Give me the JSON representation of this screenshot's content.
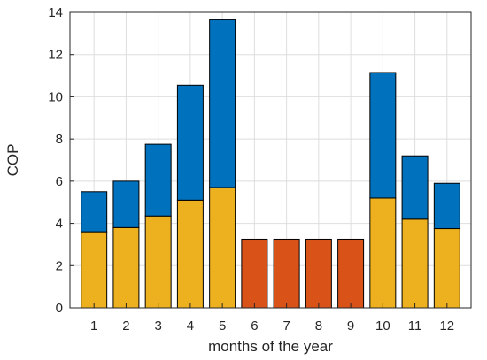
{
  "chart_data": {
    "type": "bar",
    "stacked": true,
    "title": "",
    "xlabel": "months of the year",
    "ylabel": "COP",
    "categories": [
      "1",
      "2",
      "3",
      "4",
      "5",
      "6",
      "7",
      "8",
      "9",
      "10",
      "11",
      "12"
    ],
    "ylim": [
      0,
      14
    ],
    "yticks": [
      0,
      2,
      4,
      6,
      8,
      10,
      12,
      14
    ],
    "grid": true,
    "legend": "none",
    "series": [
      {
        "color": "#EDB120",
        "values": [
          3.6,
          3.8,
          4.35,
          5.1,
          5.7,
          null,
          null,
          null,
          null,
          5.2,
          4.2,
          3.75
        ]
      },
      {
        "color": "#0072BD",
        "values": [
          1.9,
          2.2,
          3.4,
          5.45,
          7.95,
          null,
          null,
          null,
          null,
          5.95,
          3.0,
          2.15
        ]
      },
      {
        "color": "#D95319",
        "values": [
          null,
          null,
          null,
          null,
          null,
          3.25,
          3.25,
          3.25,
          3.25,
          null,
          null,
          null
        ]
      }
    ]
  }
}
